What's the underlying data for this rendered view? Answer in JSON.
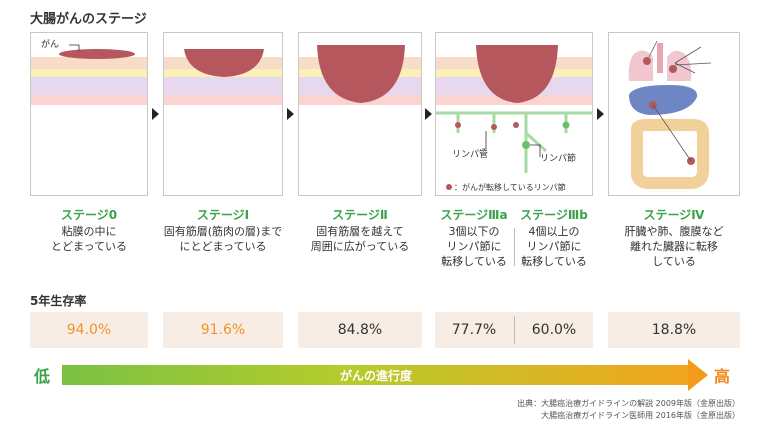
{
  "title": "大腸がんのステージ",
  "diagram_labels": {
    "cancer": "がん",
    "lymph_vessel": "リンパ管",
    "lymph_node": "リンパ節",
    "metastasis_legend": "：がんが転移しているリンパ節"
  },
  "stages": [
    {
      "title": "ステージ0",
      "desc": "粘膜の中に\nとどまっている"
    },
    {
      "title": "ステージⅠ",
      "desc": "固有筋層(筋肉の層)まで\nにとどまっている"
    },
    {
      "title": "ステージⅡ",
      "desc": "固有筋層を越えて\n周囲に広がっている"
    },
    {
      "title": "ステージⅢa",
      "desc": "3個以下の\nリンパ節に\n転移している"
    },
    {
      "title": "ステージⅢb",
      "desc": "4個以上の\nリンパ節に\n転移している"
    },
    {
      "title": "ステージⅣ",
      "desc": "肝臓や肺、腹膜など\n離れた臓器に転移\nしている"
    }
  ],
  "survival_title": "5年生存率",
  "survival": [
    "94.0%",
    "91.6%",
    "84.8%",
    "77.7%",
    "60.0%",
    "18.8%"
  ],
  "progress": {
    "low": "低",
    "label": "がんの進行度",
    "high": "高"
  },
  "source": [
    "出典：大腸癌治療ガイドラインの解説 2009年版（金原出版）",
    "大腸癌治療ガイドライン医師用 2016年版（金原出版）"
  ],
  "colors": {
    "stage_green": "#3aa34a",
    "survival_orange": "#f0932b",
    "box_bg": "#f8ede4",
    "tumor": "#b5575c"
  }
}
